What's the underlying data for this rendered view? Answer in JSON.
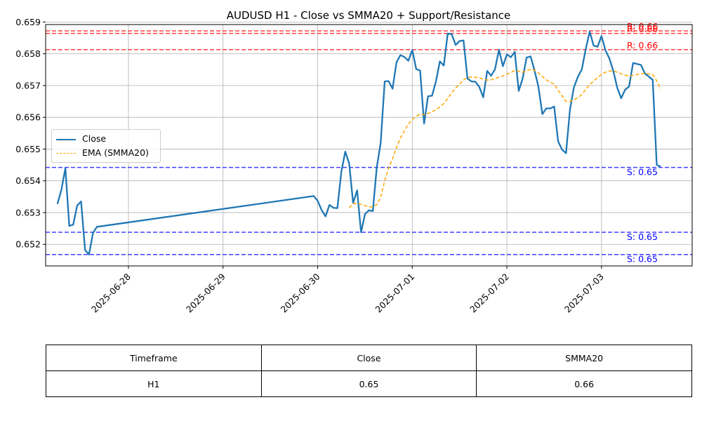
{
  "chart_data": {
    "type": "line",
    "title": "AUDUSD H1 - Close vs SMMA20 + Support/Resistance",
    "xlabel": "",
    "ylabel": "",
    "x_range": [
      "2025-06-27T03:00",
      "2025-07-03T23:00"
    ],
    "ylim": [
      0.65132,
      0.65892
    ],
    "grid": true,
    "legend_position": "center-left",
    "x_ticks": [
      "2025-06-28",
      "2025-06-29",
      "2025-06-30",
      "2025-07-01",
      "2025-07-02",
      "2025-07-03"
    ],
    "y_ticks": [
      0.652,
      0.653,
      0.654,
      0.655,
      0.656,
      0.657,
      0.658,
      0.659
    ],
    "series": [
      {
        "name": "Close",
        "color": "#1f77b4",
        "style": "solid",
        "points": [
          [
            "2025-06-27T06:00",
            0.65327
          ],
          [
            "2025-06-27T07:00",
            0.65372
          ],
          [
            "2025-06-27T08:00",
            0.6544
          ],
          [
            "2025-06-27T09:00",
            0.65258
          ],
          [
            "2025-06-27T10:00",
            0.65262
          ],
          [
            "2025-06-27T11:00",
            0.65322
          ],
          [
            "2025-06-27T12:00",
            0.65335
          ],
          [
            "2025-06-27T13:00",
            0.65182
          ],
          [
            "2025-06-27T14:00",
            0.65168
          ],
          [
            "2025-06-27T15:00",
            0.65235
          ],
          [
            "2025-06-27T16:00",
            0.65255
          ],
          [
            "2025-06-29T23:00",
            0.65352
          ],
          [
            "2025-06-30T00:00",
            0.65337
          ],
          [
            "2025-06-30T01:00",
            0.65308
          ],
          [
            "2025-06-30T02:00",
            0.65288
          ],
          [
            "2025-06-30T03:00",
            0.65324
          ],
          [
            "2025-06-30T04:00",
            0.65315
          ],
          [
            "2025-06-30T05:00",
            0.65314
          ],
          [
            "2025-06-30T06:00",
            0.65428
          ],
          [
            "2025-06-30T07:00",
            0.65492
          ],
          [
            "2025-06-30T08:00",
            0.65455
          ],
          [
            "2025-06-30T09:00",
            0.6533
          ],
          [
            "2025-06-30T10:00",
            0.6537
          ],
          [
            "2025-06-30T11:00",
            0.65238
          ],
          [
            "2025-06-30T12:00",
            0.65295
          ],
          [
            "2025-06-30T13:00",
            0.65307
          ],
          [
            "2025-06-30T14:00",
            0.65305
          ],
          [
            "2025-06-30T15:00",
            0.65442
          ],
          [
            "2025-06-30T16:00",
            0.6552
          ],
          [
            "2025-06-30T17:00",
            0.65713
          ],
          [
            "2025-06-30T18:00",
            0.65714
          ],
          [
            "2025-06-30T19:00",
            0.6569
          ],
          [
            "2025-06-30T20:00",
            0.65773
          ],
          [
            "2025-06-30T21:00",
            0.65796
          ],
          [
            "2025-06-30T22:00",
            0.6579
          ],
          [
            "2025-06-30T23:00",
            0.65778
          ],
          [
            "2025-07-01T00:00",
            0.65812
          ],
          [
            "2025-07-01T01:00",
            0.65752
          ],
          [
            "2025-07-01T02:00",
            0.65747
          ],
          [
            "2025-07-01T03:00",
            0.6558
          ],
          [
            "2025-07-01T04:00",
            0.65666
          ],
          [
            "2025-07-01T05:00",
            0.65668
          ],
          [
            "2025-07-01T06:00",
            0.65713
          ],
          [
            "2025-07-01T07:00",
            0.65776
          ],
          [
            "2025-07-01T08:00",
            0.65763
          ],
          [
            "2025-07-01T09:00",
            0.65864
          ],
          [
            "2025-07-01T10:00",
            0.65862
          ],
          [
            "2025-07-01T11:00",
            0.65828
          ],
          [
            "2025-07-01T12:00",
            0.6584
          ],
          [
            "2025-07-01T13:00",
            0.65842
          ],
          [
            "2025-07-01T14:00",
            0.65722
          ],
          [
            "2025-07-01T15:00",
            0.65713
          ],
          [
            "2025-07-01T16:00",
            0.65712
          ],
          [
            "2025-07-01T17:00",
            0.65696
          ],
          [
            "2025-07-01T18:00",
            0.65663
          ],
          [
            "2025-07-01T19:00",
            0.65746
          ],
          [
            "2025-07-01T20:00",
            0.65731
          ],
          [
            "2025-07-01T21:00",
            0.65752
          ],
          [
            "2025-07-01T22:00",
            0.65813
          ],
          [
            "2025-07-01T23:00",
            0.65761
          ],
          [
            "2025-07-02T00:00",
            0.65798
          ],
          [
            "2025-07-02T01:00",
            0.65789
          ],
          [
            "2025-07-02T02:00",
            0.65806
          ],
          [
            "2025-07-02T03:00",
            0.65683
          ],
          [
            "2025-07-02T04:00",
            0.65722
          ],
          [
            "2025-07-02T05:00",
            0.65788
          ],
          [
            "2025-07-02T06:00",
            0.65792
          ],
          [
            "2025-07-02T07:00",
            0.65748
          ],
          [
            "2025-07-02T08:00",
            0.65696
          ],
          [
            "2025-07-02T09:00",
            0.6561
          ],
          [
            "2025-07-02T10:00",
            0.65628
          ],
          [
            "2025-07-02T11:00",
            0.65628
          ],
          [
            "2025-07-02T12:00",
            0.65634
          ],
          [
            "2025-07-02T13:00",
            0.65524
          ],
          [
            "2025-07-02T14:00",
            0.65498
          ],
          [
            "2025-07-02T15:00",
            0.65487
          ],
          [
            "2025-07-02T16:00",
            0.65624
          ],
          [
            "2025-07-02T17:00",
            0.65694
          ],
          [
            "2025-07-02T18:00",
            0.65727
          ],
          [
            "2025-07-02T19:00",
            0.65751
          ],
          [
            "2025-07-02T20:00",
            0.65815
          ],
          [
            "2025-07-02T21:00",
            0.6587
          ],
          [
            "2025-07-02T22:00",
            0.65826
          ],
          [
            "2025-07-02T23:00",
            0.65822
          ],
          [
            "2025-07-03T00:00",
            0.65856
          ],
          [
            "2025-07-03T01:00",
            0.65811
          ],
          [
            "2025-07-03T02:00",
            0.65785
          ],
          [
            "2025-07-03T03:00",
            0.65746
          ],
          [
            "2025-07-03T04:00",
            0.65693
          ],
          [
            "2025-07-03T05:00",
            0.6566
          ],
          [
            "2025-07-03T06:00",
            0.65687
          ],
          [
            "2025-07-03T07:00",
            0.65697
          ],
          [
            "2025-07-03T08:00",
            0.65771
          ],
          [
            "2025-07-03T09:00",
            0.65768
          ],
          [
            "2025-07-03T10:00",
            0.65765
          ],
          [
            "2025-07-03T11:00",
            0.65738
          ],
          [
            "2025-07-03T12:00",
            0.65728
          ],
          [
            "2025-07-03T13:00",
            0.65718
          ],
          [
            "2025-07-03T14:00",
            0.6545
          ],
          [
            "2025-07-03T15:00",
            0.65445
          ]
        ]
      },
      {
        "name": "EMA (SMMA20)",
        "color": "#ffa500",
        "style": "dashed",
        "points": [
          [
            "2025-06-30T08:00",
            0.65315
          ],
          [
            "2025-06-30T09:00",
            0.65328
          ],
          [
            "2025-06-30T10:00",
            0.6533
          ],
          [
            "2025-06-30T11:00",
            0.65326
          ],
          [
            "2025-06-30T12:00",
            0.65322
          ],
          [
            "2025-06-30T13:00",
            0.65318
          ],
          [
            "2025-06-30T14:00",
            0.65318
          ],
          [
            "2025-06-30T15:00",
            0.65325
          ],
          [
            "2025-06-30T16:00",
            0.65348
          ],
          [
            "2025-06-30T17:00",
            0.654
          ],
          [
            "2025-06-30T18:00",
            0.6544
          ],
          [
            "2025-06-30T19:00",
            0.6547
          ],
          [
            "2025-06-30T20:00",
            0.65505
          ],
          [
            "2025-06-30T21:00",
            0.65535
          ],
          [
            "2025-06-30T22:00",
            0.65558
          ],
          [
            "2025-06-30T23:00",
            0.65578
          ],
          [
            "2025-07-01T00:00",
            0.65593
          ],
          [
            "2025-07-01T01:00",
            0.65603
          ],
          [
            "2025-07-01T02:00",
            0.6561
          ],
          [
            "2025-07-01T03:00",
            0.65608
          ],
          [
            "2025-07-01T04:00",
            0.65612
          ],
          [
            "2025-07-01T05:00",
            0.65618
          ],
          [
            "2025-07-01T06:00",
            0.65623
          ],
          [
            "2025-07-01T07:00",
            0.65633
          ],
          [
            "2025-07-01T08:00",
            0.65643
          ],
          [
            "2025-07-01T09:00",
            0.6566
          ],
          [
            "2025-07-01T10:00",
            0.65677
          ],
          [
            "2025-07-01T11:00",
            0.65692
          ],
          [
            "2025-07-01T12:00",
            0.65705
          ],
          [
            "2025-07-01T13:00",
            0.65718
          ],
          [
            "2025-07-01T14:00",
            0.65725
          ],
          [
            "2025-07-01T15:00",
            0.65727
          ],
          [
            "2025-07-01T16:00",
            0.65726
          ],
          [
            "2025-07-01T17:00",
            0.65724
          ],
          [
            "2025-07-01T18:00",
            0.6572
          ],
          [
            "2025-07-01T19:00",
            0.65717
          ],
          [
            "2025-07-01T20:00",
            0.65718
          ],
          [
            "2025-07-01T21:00",
            0.65722
          ],
          [
            "2025-07-01T22:00",
            0.65726
          ],
          [
            "2025-07-01T23:00",
            0.6573
          ],
          [
            "2025-07-02T00:00",
            0.65736
          ],
          [
            "2025-07-02T01:00",
            0.65741
          ],
          [
            "2025-07-02T02:00",
            0.65748
          ],
          [
            "2025-07-02T03:00",
            0.65745
          ],
          [
            "2025-07-02T04:00",
            0.65742
          ],
          [
            "2025-07-02T05:00",
            0.65746
          ],
          [
            "2025-07-02T06:00",
            0.65752
          ],
          [
            "2025-07-02T07:00",
            0.65748
          ],
          [
            "2025-07-02T08:00",
            0.6574
          ],
          [
            "2025-07-02T09:00",
            0.65728
          ],
          [
            "2025-07-02T10:00",
            0.65718
          ],
          [
            "2025-07-02T11:00",
            0.6571
          ],
          [
            "2025-07-02T12:00",
            0.65705
          ],
          [
            "2025-07-02T13:00",
            0.65685
          ],
          [
            "2025-07-02T14:00",
            0.65668
          ],
          [
            "2025-07-02T15:00",
            0.6565
          ],
          [
            "2025-07-02T16:00",
            0.6565
          ],
          [
            "2025-07-02T17:00",
            0.65655
          ],
          [
            "2025-07-02T18:00",
            0.65662
          ],
          [
            "2025-07-02T19:00",
            0.65672
          ],
          [
            "2025-07-02T20:00",
            0.65688
          ],
          [
            "2025-07-02T21:00",
            0.65703
          ],
          [
            "2025-07-02T22:00",
            0.65714
          ],
          [
            "2025-07-02T23:00",
            0.65725
          ],
          [
            "2025-07-03T00:00",
            0.65735
          ],
          [
            "2025-07-03T01:00",
            0.65742
          ],
          [
            "2025-07-03T02:00",
            0.65746
          ],
          [
            "2025-07-03T03:00",
            0.65746
          ],
          [
            "2025-07-03T04:00",
            0.65742
          ],
          [
            "2025-07-03T05:00",
            0.65737
          ],
          [
            "2025-07-03T06:00",
            0.65733
          ],
          [
            "2025-07-03T07:00",
            0.6573
          ],
          [
            "2025-07-03T08:00",
            0.65732
          ],
          [
            "2025-07-03T09:00",
            0.65735
          ],
          [
            "2025-07-03T10:00",
            0.65737
          ],
          [
            "2025-07-03T11:00",
            0.65738
          ],
          [
            "2025-07-03T12:00",
            0.65737
          ],
          [
            "2025-07-03T13:00",
            0.65735
          ],
          [
            "2025-07-03T14:00",
            0.65715
          ],
          [
            "2025-07-03T15:00",
            0.65688
          ]
        ]
      }
    ],
    "support_levels": [
      {
        "value": 0.65442,
        "label": "S: 0.65",
        "color": "#0000ff"
      },
      {
        "value": 0.65238,
        "label": "S: 0.65",
        "color": "#0000ff"
      },
      {
        "value": 0.65168,
        "label": "S: 0.65",
        "color": "#0000ff"
      }
    ],
    "resistance_levels": [
      {
        "value": 0.65872,
        "label": "R: 0.66",
        "color": "#ff0000"
      },
      {
        "value": 0.65864,
        "label": "R: 0.66",
        "color": "#ff0000"
      },
      {
        "value": 0.65813,
        "label": "R: 0.66",
        "color": "#ff0000"
      }
    ],
    "table": {
      "headers": [
        "Timeframe",
        "Close",
        "SMMA20"
      ],
      "rows": [
        [
          "H1",
          "0.65",
          "0.66"
        ]
      ]
    }
  }
}
